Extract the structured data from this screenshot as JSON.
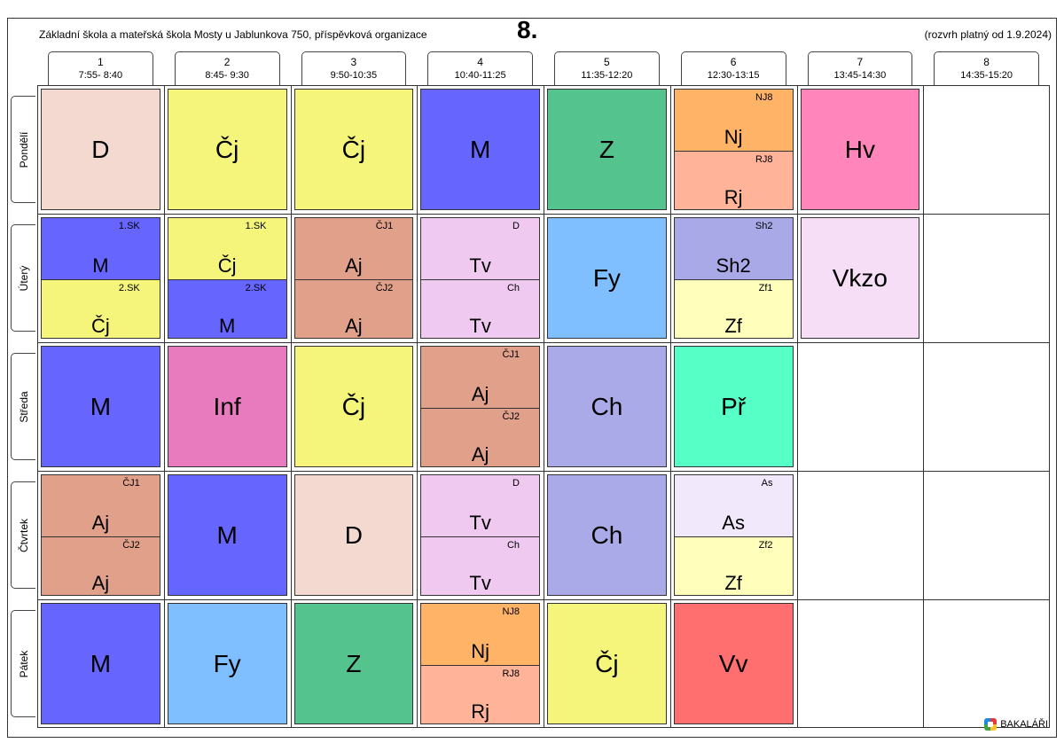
{
  "header": {
    "school": "Základní škola a mateřská škola Mosty u Jablunkova 750, příspěvková organizace",
    "class_title": "8.",
    "validity": "(rozvrh platný od 1.9.2024)"
  },
  "periods": [
    {
      "num": "1",
      "time": "7:55- 8:40"
    },
    {
      "num": "2",
      "time": "8:45- 9:30"
    },
    {
      "num": "3",
      "time": "9:50-10:35"
    },
    {
      "num": "4",
      "time": "10:40-11:25"
    },
    {
      "num": "5",
      "time": "11:35-12:20"
    },
    {
      "num": "6",
      "time": "12:30-13:15"
    },
    {
      "num": "7",
      "time": "13:45-14:30"
    },
    {
      "num": "8",
      "time": "14:35-15:20"
    }
  ],
  "days": [
    "Pondělí",
    "Úterý",
    "Středa",
    "Čtvrtek",
    "Pátek"
  ],
  "colors": {
    "D": "#f4d9d0",
    "Cj": "#f4f57a",
    "M": "#6666ff",
    "Z": "#55c38d",
    "Nj": "#ffb366",
    "Rj": "#ffb399",
    "Hv": "#ff85bb",
    "Aj": "#e0a08a",
    "Tv": "#f0c9f0",
    "Fy": "#80bfff",
    "Sh2": "#a9a9e8",
    "Zf": "#ffffbb",
    "Vkzo": "#f6def6",
    "Inf": "#e87bbd",
    "Ch": "#aaaae8",
    "Pr": "#55ffc6",
    "As": "#f1e8fb",
    "Vv": "#ff6f6f"
  },
  "schedule": [
    [
      {
        "subject": "D",
        "color": "D"
      },
      {
        "subject": "Čj",
        "color": "Cj"
      },
      {
        "subject": "Čj",
        "color": "Cj"
      },
      {
        "subject": "M",
        "color": "M"
      },
      {
        "subject": "Z",
        "color": "Z"
      },
      {
        "split": [
          {
            "subject": "Nj",
            "group": "NJ8",
            "color": "Nj"
          },
          {
            "subject": "Rj",
            "group": "RJ8",
            "color": "Rj"
          }
        ]
      },
      {
        "subject": "Hv",
        "color": "Hv"
      },
      null
    ],
    [
      {
        "split": [
          {
            "subject": "M",
            "group": "1.SK",
            "color": "M"
          },
          {
            "subject": "Čj",
            "group": "2.SK",
            "color": "Cj"
          }
        ]
      },
      {
        "split": [
          {
            "subject": "Čj",
            "group": "1.SK",
            "color": "Cj"
          },
          {
            "subject": "M",
            "group": "2.SK",
            "color": "M"
          }
        ]
      },
      {
        "split": [
          {
            "subject": "Aj",
            "group": "ČJ1",
            "color": "Aj"
          },
          {
            "subject": "Aj",
            "group": "ČJ2",
            "color": "Aj"
          }
        ]
      },
      {
        "split": [
          {
            "subject": "Tv",
            "group": "D",
            "color": "Tv"
          },
          {
            "subject": "Tv",
            "group": "Ch",
            "color": "Tv"
          }
        ]
      },
      {
        "subject": "Fy",
        "color": "Fy"
      },
      {
        "split": [
          {
            "subject": "Sh2",
            "group": "Sh2",
            "color": "Sh2"
          },
          {
            "subject": "Zf",
            "group": "Zf1",
            "color": "Zf"
          }
        ]
      },
      {
        "subject": "Vkzo",
        "color": "Vkzo"
      },
      null
    ],
    [
      {
        "subject": "M",
        "color": "M"
      },
      {
        "subject": "Inf",
        "color": "Inf"
      },
      {
        "subject": "Čj",
        "color": "Cj"
      },
      {
        "split": [
          {
            "subject": "Aj",
            "group": "ČJ1",
            "color": "Aj"
          },
          {
            "subject": "Aj",
            "group": "ČJ2",
            "color": "Aj"
          }
        ]
      },
      {
        "subject": "Ch",
        "color": "Ch"
      },
      {
        "subject": "Př",
        "color": "Pr"
      },
      null,
      null
    ],
    [
      {
        "split": [
          {
            "subject": "Aj",
            "group": "ČJ1",
            "color": "Aj"
          },
          {
            "subject": "Aj",
            "group": "ČJ2",
            "color": "Aj"
          }
        ]
      },
      {
        "subject": "M",
        "color": "M"
      },
      {
        "subject": "D",
        "color": "D"
      },
      {
        "split": [
          {
            "subject": "Tv",
            "group": "D",
            "color": "Tv"
          },
          {
            "subject": "Tv",
            "group": "Ch",
            "color": "Tv"
          }
        ]
      },
      {
        "subject": "Ch",
        "color": "Ch"
      },
      {
        "split": [
          {
            "subject": "As",
            "group": "As",
            "color": "As"
          },
          {
            "subject": "Zf",
            "group": "Zf2",
            "color": "Zf"
          }
        ]
      },
      null,
      null
    ],
    [
      {
        "subject": "M",
        "color": "M"
      },
      {
        "subject": "Fy",
        "color": "Fy"
      },
      {
        "subject": "Z",
        "color": "Z"
      },
      {
        "split": [
          {
            "subject": "Nj",
            "group": "NJ8",
            "color": "Nj"
          },
          {
            "subject": "Rj",
            "group": "RJ8",
            "color": "Rj"
          }
        ]
      },
      {
        "subject": "Čj",
        "color": "Cj"
      },
      {
        "subject": "Vv",
        "color": "Vv"
      },
      null,
      null
    ]
  ],
  "logo": {
    "icon": "bakalari-logo-icon",
    "text": "BAKALÁŘI"
  }
}
